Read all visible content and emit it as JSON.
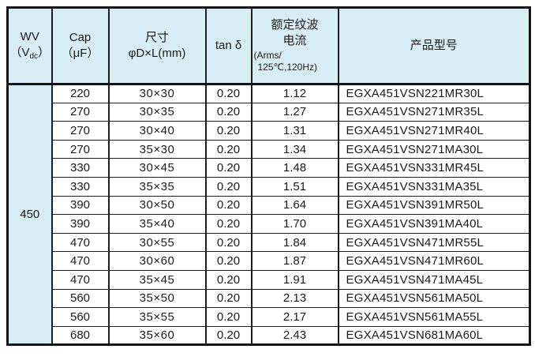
{
  "colors": {
    "header_bg": "#d9edf6",
    "border_dark": "#141414",
    "text": "#1a1a1a"
  },
  "table": {
    "wv_value": "450",
    "column_ids": [
      "wv",
      "cap",
      "size",
      "tand",
      "ripple",
      "model"
    ],
    "header": {
      "wv": {
        "line1": "WV",
        "paren_open": "（V",
        "subscript": "dc",
        "paren_close": "）"
      },
      "cap": {
        "line1": "Cap",
        "line2": "（μF）"
      },
      "size": {
        "line1": "尺寸",
        "line2": "φD×L(mm)"
      },
      "tand": {
        "label": "tan δ"
      },
      "ripple": {
        "line1": "额定纹波",
        "line2": "电流",
        "line3": "(Arms/",
        "line4": "125℃,120Hz)"
      },
      "model": {
        "label": "产品型号"
      }
    },
    "rows": [
      [
        "220",
        "30×30",
        "0.20",
        "1.12",
        "EGXA451VSN221MR30L"
      ],
      [
        "270",
        "30×35",
        "0.20",
        "1.27",
        "EGXA451VSN271MR35L"
      ],
      [
        "270",
        "30×40",
        "0.20",
        "1.31",
        "EGXA451VSN271MR40L"
      ],
      [
        "270",
        "35×30",
        "0.20",
        "1.34",
        "EGXA451VSN271MA30L"
      ],
      [
        "330",
        "30×45",
        "0.20",
        "1.48",
        "EGXA451VSN331MR45L"
      ],
      [
        "330",
        "35×35",
        "0.20",
        "1.51",
        "EGXA451VSN331MA35L"
      ],
      [
        "390",
        "30×50",
        "0.20",
        "1.64",
        "EGXA451VSN391MR50L"
      ],
      [
        "390",
        "35×40",
        "0.20",
        "1.70",
        "EGXA451VSN391MA40L"
      ],
      [
        "470",
        "30×55",
        "0.20",
        "1.84",
        "EGXA451VSN471MR55L"
      ],
      [
        "470",
        "30×60",
        "0.20",
        "1.87",
        "EGXA451VSN471MR60L"
      ],
      [
        "470",
        "35×45",
        "0.20",
        "1.91",
        "EGXA451VSN471MA45L"
      ],
      [
        "560",
        "35×50",
        "0.20",
        "2.13",
        "EGXA451VSN561MA50L"
      ],
      [
        "560",
        "35×55",
        "0.20",
        "2.17",
        "EGXA451VSN561MA55L"
      ],
      [
        "680",
        "35×60",
        "0.20",
        "2.43",
        "EGXA451VSN681MA60L"
      ]
    ]
  }
}
